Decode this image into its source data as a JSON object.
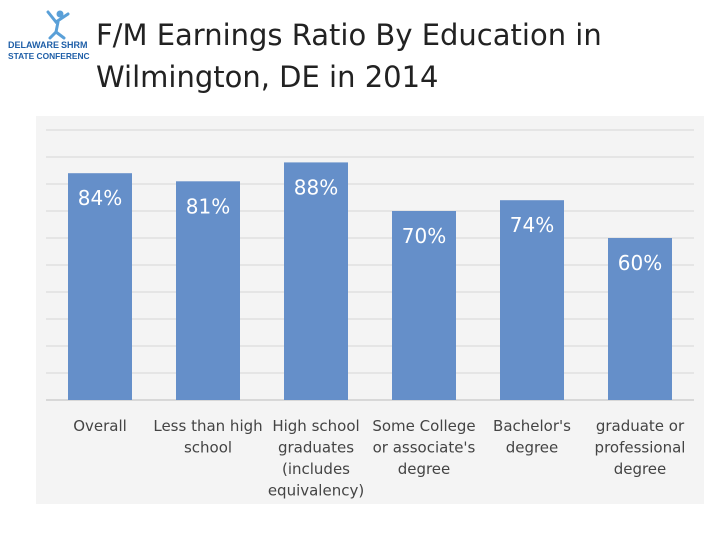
{
  "logo": {
    "line1_left": "DELAWARE",
    "line1_right": "SHRM",
    "line2": "STATE CONFERENCE",
    "brand_colors": {
      "blue": "#1f5fa8",
      "figure": "#5aa0d8"
    }
  },
  "title": "F/M Earnings Ratio By Education in Wilmington, DE in 2014",
  "chart_data": {
    "type": "bar",
    "title": "",
    "xlabel": "",
    "ylabel": "",
    "ylim": [
      0,
      100
    ],
    "grid": true,
    "legend": "none",
    "bar_color": "#658fc9",
    "categories": [
      "Overall",
      "Less than high school",
      "High school graduates (includes equivalency)",
      "Some College or associate's degree",
      "Bachelor's degree",
      "graduate or professional degree"
    ],
    "category_lines": [
      [
        "Overall"
      ],
      [
        "Less than high",
        "school"
      ],
      [
        "High school",
        "graduates",
        "(includes",
        "equivalency)"
      ],
      [
        "Some College",
        "or associate's",
        "degree"
      ],
      [
        "Bachelor's",
        "degree"
      ],
      [
        "graduate or",
        "professional",
        "degree"
      ]
    ],
    "values": [
      84,
      81,
      88,
      70,
      74,
      60
    ],
    "data_labels": [
      "84%",
      "81%",
      "88%",
      "70%",
      "74%",
      "60%"
    ]
  }
}
